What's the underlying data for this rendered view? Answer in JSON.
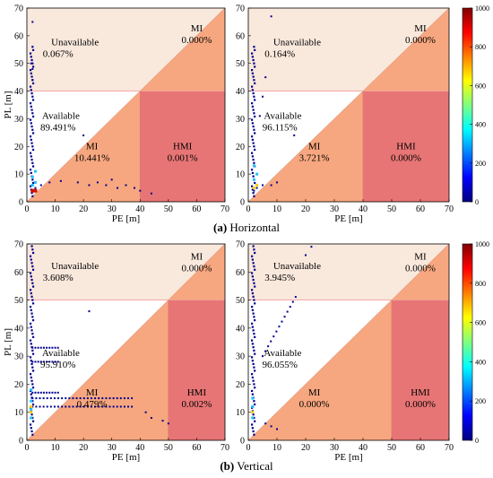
{
  "captions": {
    "a_letter": "(a)",
    "a_text": " Horizontal",
    "b_letter": "(b)",
    "b_text": " Vertical"
  },
  "colorbar": {
    "ticks": [
      "1000",
      "800",
      "600",
      "400",
      "200",
      "0"
    ],
    "colors": [
      "#00007f",
      "#0000ff",
      "#007fff",
      "#00ffff",
      "#7fff7f",
      "#ffff00",
      "#ff7f00",
      "#ff0000",
      "#7f0000"
    ]
  },
  "colors": {
    "unavailable": "#f9e8dc",
    "mi": "#f7a77f",
    "hmi": "#e87575",
    "available": "#ffffff"
  },
  "chart_data": [
    {
      "type": "heatmap",
      "panel": "a-left",
      "xlabel": "PE [m]",
      "ylabel": "PL [m]",
      "alert_limit": 40,
      "xlim": [
        0,
        70
      ],
      "ylim": [
        0,
        70
      ],
      "xticks": [
        "0",
        "10",
        "20",
        "30",
        "40",
        "50",
        "60",
        "70"
      ],
      "yticks": [
        "0",
        "10",
        "20",
        "30",
        "40",
        "50",
        "60",
        "70"
      ],
      "regions": {
        "unavailable_label": "Unavailable",
        "unavailable_value": "0.067%",
        "mi_top_label": "MI",
        "mi_top_value": "0.000%",
        "available_label": "Available",
        "available_value": "89.491%",
        "mi_label": "MI",
        "mi_value": "10.441%",
        "hmi_label": "HMI",
        "hmi_value": "0.001%"
      }
    },
    {
      "type": "heatmap",
      "panel": "a-right",
      "xlabel": "PE [m]",
      "alert_limit": 40,
      "xlim": [
        0,
        70
      ],
      "ylim": [
        0,
        70
      ],
      "xticks": [
        "0",
        "10",
        "20",
        "30",
        "40",
        "50",
        "60",
        "70"
      ],
      "yticks": [
        "0",
        "10",
        "20",
        "30",
        "40",
        "50",
        "60",
        "70"
      ],
      "regions": {
        "unavailable_label": "Unavailable",
        "unavailable_value": "0.164%",
        "mi_top_label": "MI",
        "mi_top_value": "0.000%",
        "available_label": "Available",
        "available_value": "96.115%",
        "mi_label": "MI",
        "mi_value": "3.721%",
        "hmi_label": "HMI",
        "hmi_value": "0.000%"
      }
    },
    {
      "type": "heatmap",
      "panel": "b-left",
      "xlabel": "PE [m]",
      "ylabel": "PL [m]",
      "alert_limit": 50,
      "xlim": [
        0,
        70
      ],
      "ylim": [
        0,
        70
      ],
      "xticks": [
        "0",
        "10",
        "20",
        "30",
        "40",
        "50",
        "60",
        "70"
      ],
      "yticks": [
        "0",
        "10",
        "20",
        "30",
        "40",
        "50",
        "60",
        "70"
      ],
      "regions": {
        "unavailable_label": "Unavailable",
        "unavailable_value": "3.608%",
        "mi_top_label": "MI",
        "mi_top_value": "0.000%",
        "available_label": "Available",
        "available_value": "95.910%",
        "mi_label": "MI",
        "mi_value": "0.479%",
        "hmi_label": "HMI",
        "hmi_value": "0.002%"
      }
    },
    {
      "type": "heatmap",
      "panel": "b-right",
      "xlabel": "PE [m]",
      "alert_limit": 50,
      "xlim": [
        0,
        70
      ],
      "ylim": [
        0,
        70
      ],
      "xticks": [
        "0",
        "10",
        "20",
        "30",
        "40",
        "50",
        "60",
        "70"
      ],
      "yticks": [
        "0",
        "10",
        "20",
        "30",
        "40",
        "50",
        "60",
        "70"
      ],
      "regions": {
        "unavailable_label": "Unavailable",
        "unavailable_value": "3.945%",
        "mi_top_label": "MI",
        "mi_top_value": "0.000%",
        "available_label": "Available",
        "available_value": "96.055%",
        "mi_label": "MI",
        "mi_value": "0.000%",
        "hmi_label": "HMI",
        "hmi_value": "0.000%"
      }
    }
  ]
}
